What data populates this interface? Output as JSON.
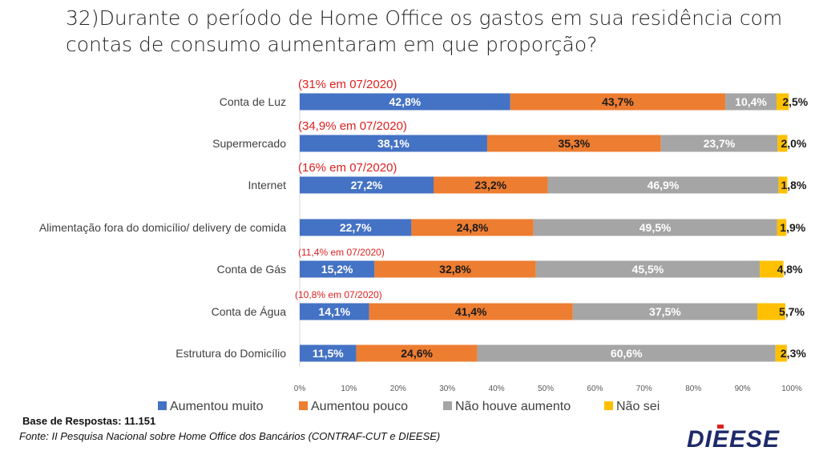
{
  "title": "32)Durante o período de Home Office os gastos em sua residência com contas de consumo aumentaram em que proporção?",
  "base": "Base de Respostas: 11.151",
  "source": "Fonte: II Pesquisa Nacional sobre Home Office dos Bancários (CONTRAF-CUT e DIEESE)",
  "logo_text": "DIEESE",
  "chart_data": {
    "type": "bar",
    "orientation": "horizontal",
    "stacked": "percent",
    "categories": [
      "Conta de Luz",
      "Supermercado",
      "Internet",
      "Alimentação fora do domicílio/ delivery de comida",
      "Conta de Gás",
      "Conta de Água",
      "Estrutura do Domicílio"
    ],
    "series": [
      {
        "name": "Aumentou muito",
        "color": "#4472C4",
        "values": [
          42.8,
          38.1,
          27.2,
          22.7,
          15.2,
          14.1,
          11.5
        ],
        "labels": [
          "42,8%",
          "38,1%",
          "27,2%",
          "22,7%",
          "15,2%",
          "14,1%",
          "11,5%"
        ]
      },
      {
        "name": "Aumentou pouco",
        "color": "#ED7D31",
        "values": [
          43.7,
          35.3,
          23.2,
          24.8,
          32.8,
          41.4,
          24.6
        ],
        "labels": [
          "43,7%",
          "35,3%",
          "23,2%",
          "24,8%",
          "32,8%",
          "41,4%",
          "24,6%"
        ]
      },
      {
        "name": "Não houve aumento",
        "color": "#A5A5A5",
        "values": [
          10.4,
          23.7,
          46.9,
          49.5,
          45.5,
          37.5,
          60.6
        ],
        "labels": [
          "10,4%",
          "23,7%",
          "46,9%",
          "49,5%",
          "45,5%",
          "37,5%",
          "60,6%"
        ]
      },
      {
        "name": "Não sei",
        "color": "#FFC000",
        "values": [
          2.5,
          2.0,
          1.8,
          1.9,
          4.8,
          5.7,
          2.3
        ],
        "labels": [
          "2,5%",
          "2,0%",
          "1,8%",
          "1,9%",
          "4,8%",
          "5,7%",
          "2,3%"
        ]
      }
    ],
    "annotations": [
      "(31% em 07/2020)",
      "(34,9% em 07/2020)",
      "(16% em 07/2020)",
      "",
      "(11,4% em 07/2020)",
      "(10,8% em 07/2020)",
      ""
    ],
    "xticks": [
      "0%",
      "10%",
      "20%",
      "30%",
      "40%",
      "50%",
      "60%",
      "70%",
      "80%",
      "90%",
      "100%"
    ],
    "xlim": [
      0,
      100
    ],
    "grid": false,
    "legend": "bottom",
    "annotation_color": "#E02020"
  }
}
